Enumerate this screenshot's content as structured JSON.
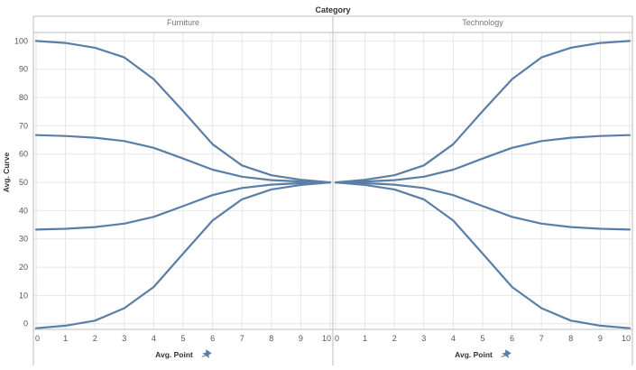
{
  "chart_data": {
    "type": "line",
    "title": "Category",
    "xlabel": "Avg. Point",
    "ylabel": "Avg. Curve",
    "ylim": [
      -2,
      103
    ],
    "xlim": [
      0,
      10
    ],
    "yticks": [
      "0",
      "10",
      "20",
      "30",
      "40",
      "50",
      "60",
      "70",
      "80",
      "90",
      "100"
    ],
    "xticks": [
      "0",
      "1",
      "2",
      "3",
      "4",
      "5",
      "6",
      "7",
      "8",
      "9",
      "10"
    ],
    "grid": true,
    "line_color": "#5b7ea7",
    "panels": [
      {
        "name": "Furniture",
        "x": [
          0,
          1,
          2,
          3,
          4,
          5,
          6,
          7,
          8,
          9,
          10
        ],
        "series": [
          {
            "values": [
              100,
              99.3,
              97.6,
              94.2,
              86.5,
              75.2,
              63.5,
              56,
              52.5,
              50.9,
              50
            ]
          },
          {
            "values": [
              66.7,
              66.4,
              65.8,
              64.6,
              62.2,
              58.4,
              54.5,
              52,
              50.8,
              50.3,
              50
            ]
          },
          {
            "values": [
              33.3,
              33.6,
              34.2,
              35.4,
              37.8,
              41.6,
              45.5,
              48,
              49.2,
              49.7,
              50
            ]
          },
          {
            "values": [
              -1.6,
              -0.7,
              1.1,
              5.5,
              13,
              24.8,
              36.5,
              44,
              47.5,
              49.1,
              50
            ]
          }
        ]
      },
      {
        "name": "Technology",
        "x": [
          0,
          1,
          2,
          3,
          4,
          5,
          6,
          7,
          8,
          9,
          10
        ],
        "series": [
          {
            "values": [
              50,
              50.9,
              52.5,
              56,
              63.5,
              75.2,
              86.5,
              94.2,
              97.6,
              99.3,
              100
            ]
          },
          {
            "values": [
              50,
              50.3,
              50.8,
              52,
              54.5,
              58.4,
              62.2,
              64.6,
              65.8,
              66.4,
              66.7
            ]
          },
          {
            "values": [
              50,
              49.7,
              49.2,
              48,
              45.5,
              41.6,
              37.8,
              35.4,
              34.2,
              33.6,
              33.3
            ]
          },
          {
            "values": [
              50,
              49.1,
              47.5,
              44,
              36.5,
              24.8,
              13,
              5.5,
              1.1,
              -0.7,
              -1.6
            ]
          }
        ]
      }
    ]
  }
}
